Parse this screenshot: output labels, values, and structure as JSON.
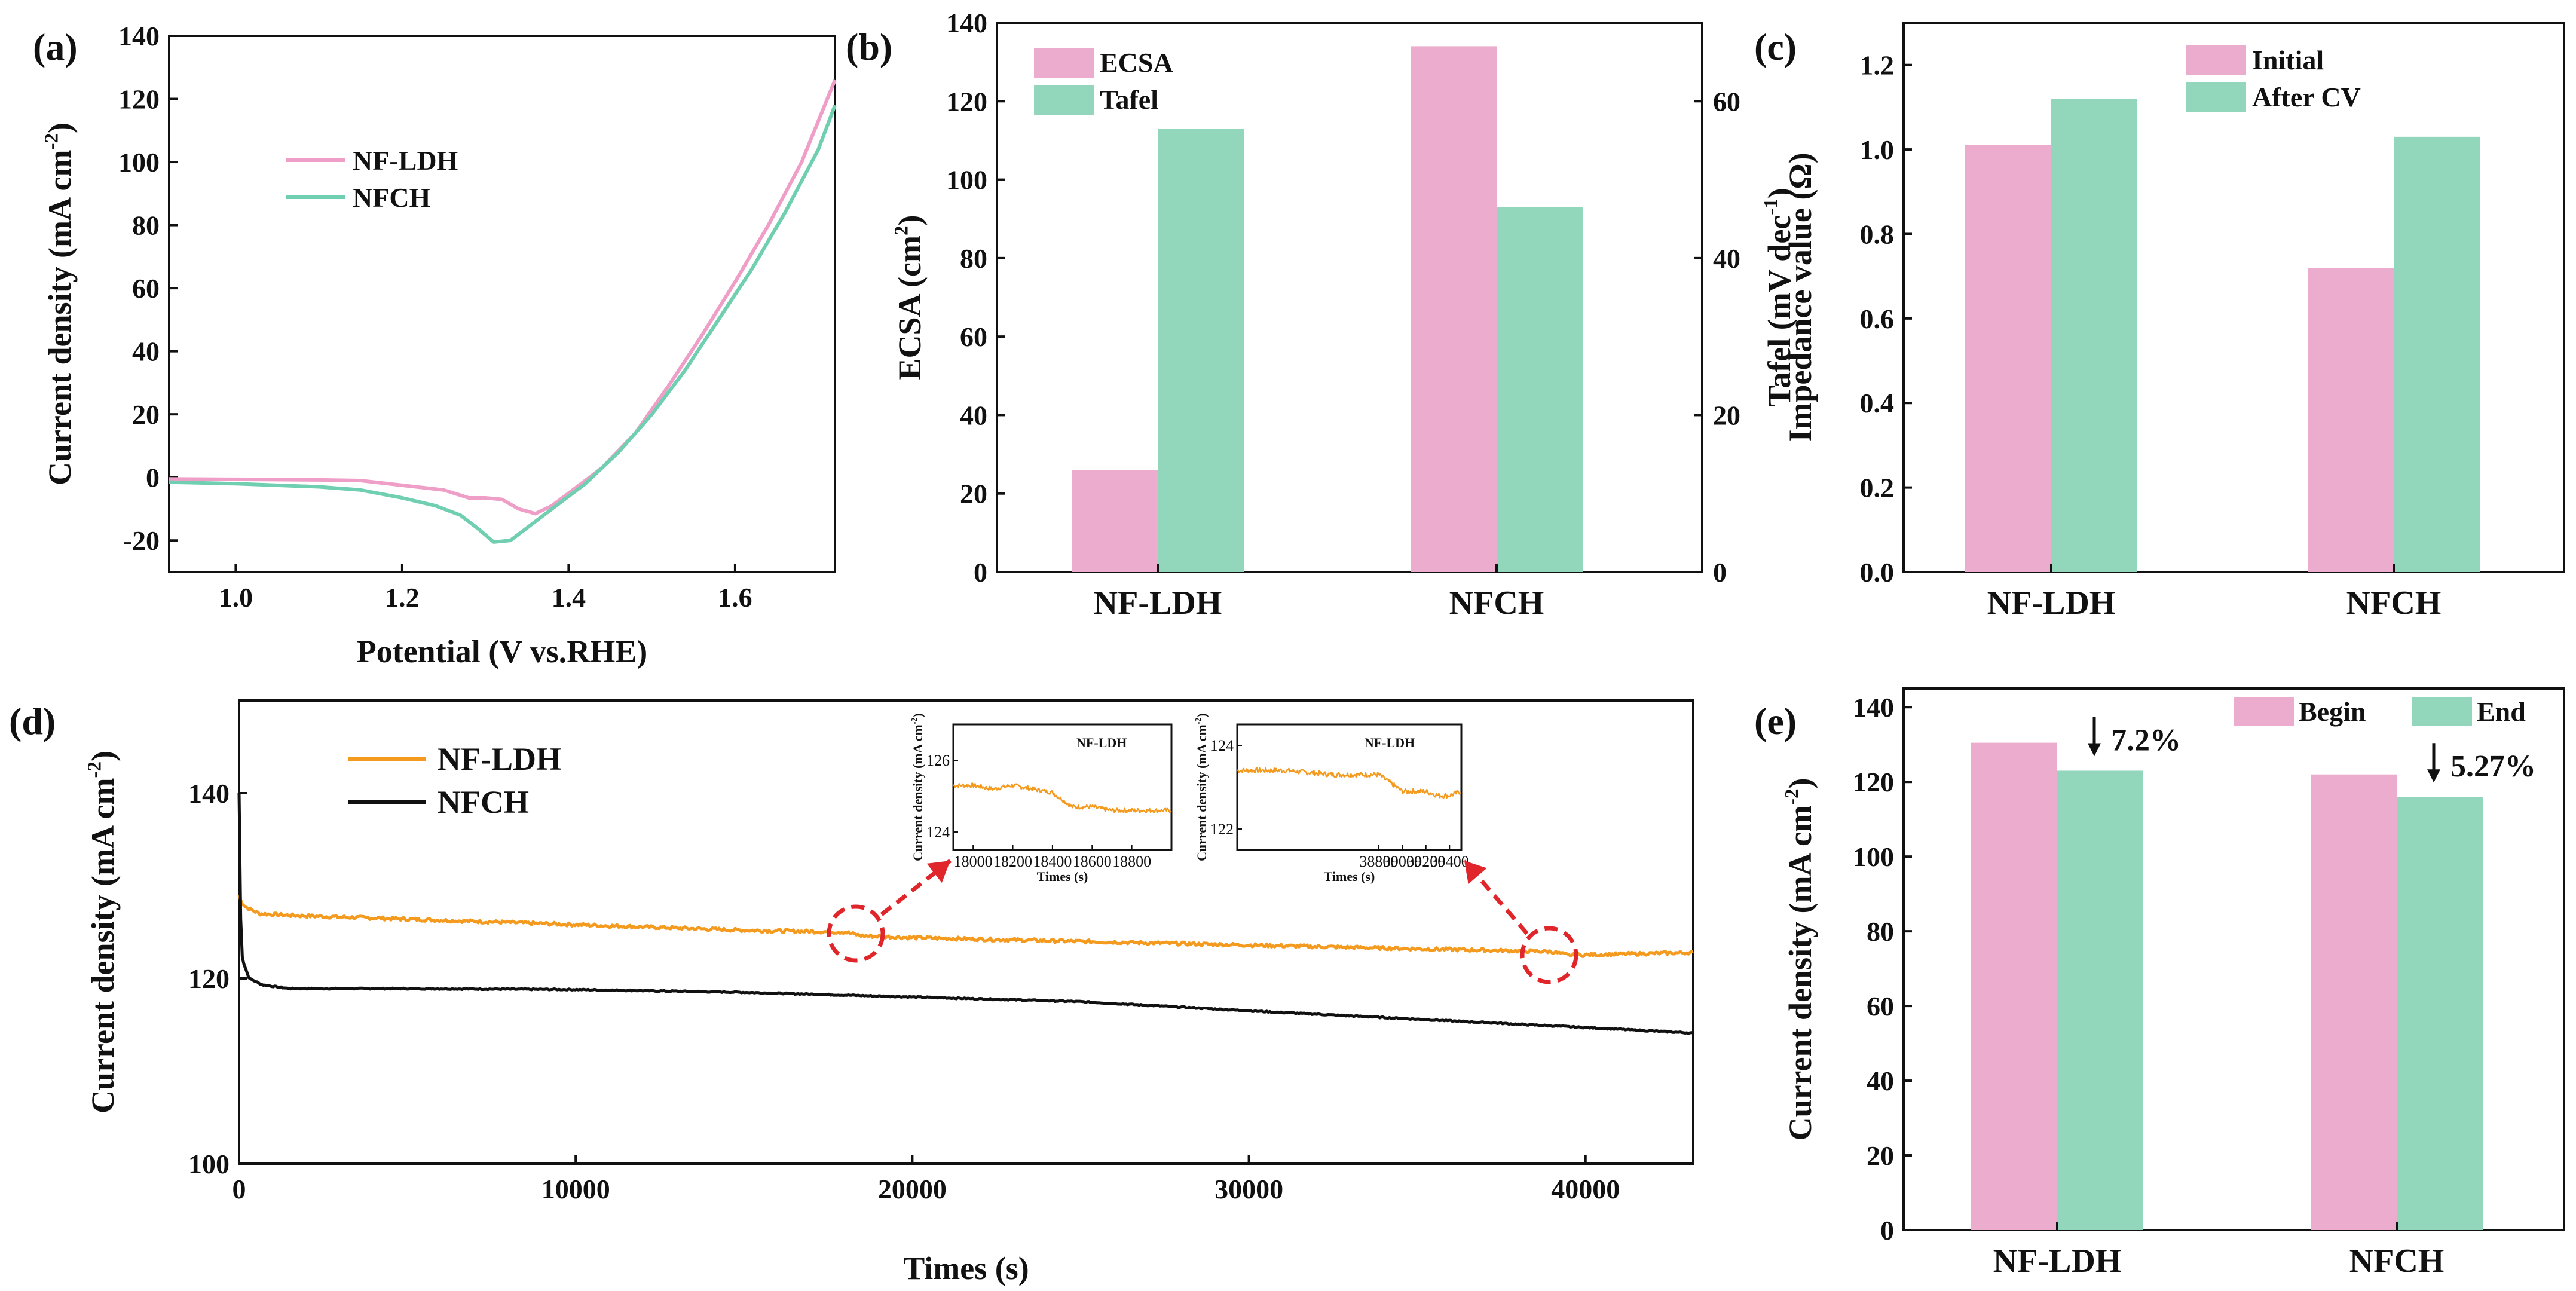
{
  "colors": {
    "pink": "#ecaccd",
    "green": "#92d6bb",
    "line_pink": "#ef9fc7",
    "line_green": "#6fcfb0",
    "orange": "#f39a1f",
    "black": "#111111",
    "red_dash": "#e0262a"
  },
  "chart_data": [
    {
      "panel": "(a)",
      "type": "line",
      "xlabel": "Potential (V vs.RHE)",
      "ylabel": "Current density (mA cm⁻²)",
      "xlim": [
        0.92,
        1.72
      ],
      "ylim": [
        -30,
        140
      ],
      "xticks": [
        "1.0",
        "1.2",
        "1.4",
        "1.6"
      ],
      "yticks": [
        "-20",
        "0",
        "20",
        "40",
        "60",
        "80",
        "100",
        "120",
        "140"
      ],
      "legend": [
        "NF-LDH",
        "NFCH"
      ],
      "series": [
        {
          "name": "NF-LDH",
          "color_key": "line_pink",
          "x": [
            0.92,
            1.0,
            1.1,
            1.15,
            1.2,
            1.25,
            1.28,
            1.3,
            1.32,
            1.34,
            1.36,
            1.38,
            1.4,
            1.44,
            1.48,
            1.52,
            1.56,
            1.6,
            1.64,
            1.68,
            1.72
          ],
          "y": [
            -0.5,
            -0.6,
            -0.8,
            -1.0,
            -2.5,
            -4,
            -6.5,
            -6.5,
            -7,
            -10,
            -11.5,
            -9,
            -5,
            3,
            14,
            29,
            45,
            62,
            80,
            100,
            126
          ]
        },
        {
          "name": "NFCH",
          "color_key": "line_green",
          "x": [
            0.92,
            1.0,
            1.1,
            1.15,
            1.2,
            1.24,
            1.27,
            1.29,
            1.31,
            1.33,
            1.35,
            1.38,
            1.42,
            1.46,
            1.5,
            1.54,
            1.58,
            1.62,
            1.66,
            1.7,
            1.72
          ],
          "y": [
            -1.5,
            -2,
            -3,
            -4,
            -6.5,
            -9,
            -12,
            -16,
            -20.5,
            -20,
            -16,
            -10,
            -2,
            8,
            20,
            34,
            50,
            66,
            84,
            104,
            118
          ]
        }
      ]
    },
    {
      "panel": "(b)",
      "type": "bar",
      "categories": [
        "NF-LDH",
        "NFCH"
      ],
      "ylabel": "ECSA (cm²)",
      "ylabel_right": "Tafel (mV dec⁻¹)",
      "ylim": [
        0,
        140
      ],
      "ylim_right": [
        0,
        70
      ],
      "yticks": [
        "0",
        "20",
        "40",
        "60",
        "80",
        "100",
        "120",
        "140"
      ],
      "yticks_right": [
        "0",
        "20",
        "40",
        "60"
      ],
      "legend": [
        "ECSA",
        "Tafel"
      ],
      "series": [
        {
          "name": "ECSA",
          "axis": "left",
          "color_key": "pink",
          "values": [
            26,
            134
          ]
        },
        {
          "name": "Tafel",
          "axis": "right",
          "color_key": "green",
          "values": [
            56.5,
            46.5
          ]
        }
      ]
    },
    {
      "panel": "(c)",
      "type": "bar",
      "categories": [
        "NF-LDH",
        "NFCH"
      ],
      "ylabel": "Impedance value (Ω)",
      "ylim": [
        0,
        1.3
      ],
      "yticks": [
        "0.0",
        "0.2",
        "0.4",
        "0.6",
        "0.8",
        "1.0",
        "1.2"
      ],
      "legend": [
        "Initial",
        "After CV"
      ],
      "series": [
        {
          "name": "Initial",
          "color_key": "pink",
          "values": [
            1.01,
            0.72
          ]
        },
        {
          "name": "After CV",
          "color_key": "green",
          "values": [
            1.12,
            1.03
          ]
        }
      ]
    },
    {
      "panel": "(d)",
      "type": "line",
      "xlabel": "Times (s)",
      "ylabel": "Current density (mA cm⁻²)",
      "xlim": [
        0,
        43200
      ],
      "ylim": [
        100,
        150
      ],
      "xticks": [
        "0",
        "10000",
        "20000",
        "30000",
        "40000"
      ],
      "yticks": [
        "100",
        "120",
        "140"
      ],
      "legend": [
        "NF-LDH",
        "NFCH"
      ],
      "series": [
        {
          "name": "NF-LDH",
          "color_key": "orange",
          "x": [
            0,
            60,
            200,
            600,
            1500,
            5000,
            10000,
            15000,
            18000,
            18500,
            20000,
            25000,
            30000,
            35000,
            39000,
            39500,
            43200
          ],
          "y": [
            129,
            128.3,
            127.7,
            127,
            126.8,
            126.4,
            125.8,
            125.2,
            125,
            124.6,
            124.4,
            124,
            123.6,
            123.2,
            122.9,
            122.5,
            122.8
          ]
        },
        {
          "name": "NFCH",
          "color_key": "black",
          "x": [
            0,
            30,
            100,
            300,
            700,
            1500,
            5000,
            10000,
            15000,
            20000,
            25000,
            30000,
            35000,
            40000,
            43200
          ],
          "y": [
            140,
            128,
            122,
            120,
            119.3,
            118.9,
            118.9,
            118.8,
            118.5,
            118,
            117.5,
            116.5,
            115.6,
            114.7,
            114.1
          ]
        }
      ],
      "insets": [
        {
          "title": "NF-LDH",
          "xlabel": "Times (s)",
          "ylabel": "Current density (mA cm⁻²)",
          "xlim": [
            17900,
            19000
          ],
          "ylim": [
            123.5,
            127
          ],
          "xticks": [
            "18000",
            "18200",
            "18400",
            "18600",
            "18800"
          ],
          "yticks": [
            "124",
            "126"
          ],
          "x": [
            17900,
            18000,
            18100,
            18200,
            18300,
            18400,
            18450,
            18500,
            18600,
            18700,
            18800,
            18900,
            19000
          ],
          "y": [
            125.3,
            125.3,
            125.2,
            125.3,
            125.2,
            125.1,
            124.9,
            124.7,
            124.7,
            124.6,
            124.6,
            124.6,
            124.6
          ]
        },
        {
          "title": "NF-LDH",
          "xlabel": "Times (s)",
          "ylabel": "Current density (mA cm⁻²)",
          "xlim": [
            37600,
            39500
          ],
          "ylim": [
            121.5,
            124.5
          ],
          "xticks": [
            "38800",
            "39000",
            "39200",
            "39400"
          ],
          "yticks": [
            "122",
            "124"
          ],
          "x": [
            37600,
            38000,
            38400,
            38800,
            38900,
            39000,
            39100,
            39200,
            39300,
            39400,
            39500
          ],
          "y": [
            123.4,
            123.4,
            123.3,
            123.3,
            123.1,
            122.9,
            122.9,
            122.9,
            122.8,
            122.8,
            122.9
          ]
        }
      ]
    },
    {
      "panel": "(e)",
      "type": "bar",
      "categories": [
        "NF-LDH",
        "NFCH"
      ],
      "ylabel": "Current density (mA cm⁻²)",
      "ylim": [
        0,
        145
      ],
      "yticks": [
        "0",
        "20",
        "40",
        "60",
        "80",
        "100",
        "120",
        "140"
      ],
      "legend": [
        "Begin",
        "End"
      ],
      "series": [
        {
          "name": "Begin",
          "color_key": "pink",
          "values": [
            130.5,
            122
          ]
        },
        {
          "name": "End",
          "color_key": "green",
          "values": [
            123,
            116
          ]
        }
      ],
      "annotations": [
        "7.2%",
        "5.27%"
      ]
    }
  ]
}
